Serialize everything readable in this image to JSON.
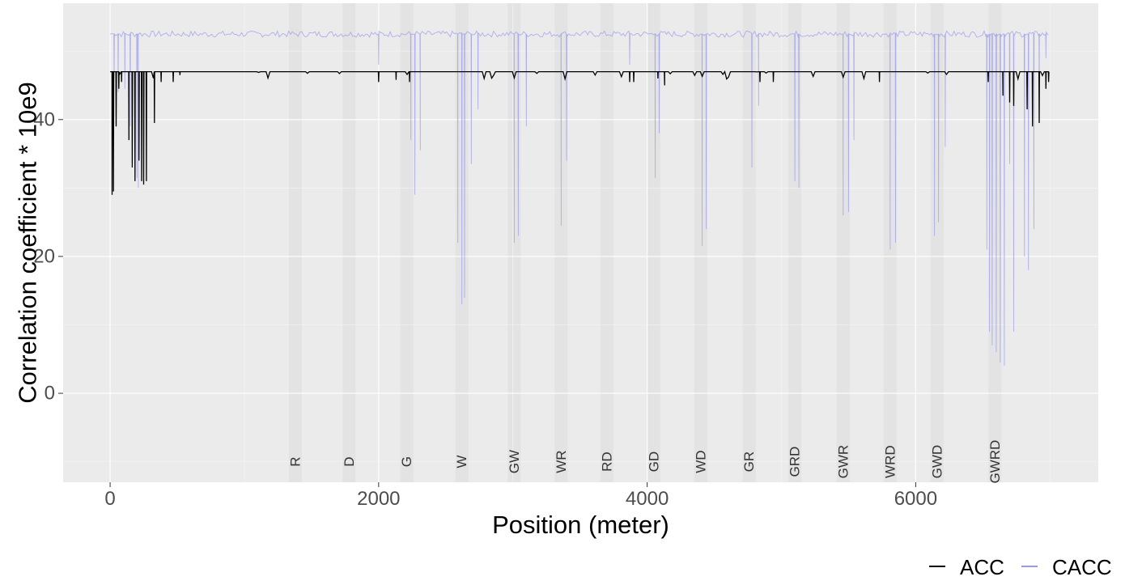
{
  "chart_data": {
    "type": "line",
    "title": "",
    "xlabel": "Position (meter)",
    "ylabel": "Correlation coefficient * 10e9",
    "xlim": [
      -350,
      7360
    ],
    "ylim": [
      -13,
      57
    ],
    "x_ticks": [
      0,
      2000,
      4000,
      6000
    ],
    "x_tick_labels": [
      "0",
      "2000",
      "4000",
      "6000"
    ],
    "y_ticks": [
      0,
      20,
      40
    ],
    "y_tick_labels": [
      "0",
      "20",
      "40"
    ],
    "grid": true,
    "background": "#EBEBEB",
    "legend": {
      "position": "bottom-right",
      "entries": [
        {
          "label": "ACC",
          "color": "#000000"
        },
        {
          "label": "CACC",
          "color": "#9999EE"
        }
      ]
    },
    "regions": [
      {
        "label": "R",
        "x": 1380
      },
      {
        "label": "D",
        "x": 1780
      },
      {
        "label": "G",
        "x": 2210
      },
      {
        "label": "W",
        "x": 2620
      },
      {
        "label": "GW",
        "x": 3010
      },
      {
        "label": "WR",
        "x": 3360
      },
      {
        "label": "RD",
        "x": 3700
      },
      {
        "label": "GD",
        "x": 4050
      },
      {
        "label": "WD",
        "x": 4400
      },
      {
        "label": "GR",
        "x": 4760
      },
      {
        "label": "GRD",
        "x": 5100
      },
      {
        "label": "GWR",
        "x": 5460
      },
      {
        "label": "WRD",
        "x": 5810
      },
      {
        "label": "GWD",
        "x": 6160
      },
      {
        "label": "GWRD",
        "x": 6590
      }
    ],
    "region_label_y": -10,
    "series": [
      {
        "name": "ACC",
        "color": "#000000",
        "baseline": 47,
        "x_start": 0,
        "x_end": 6990,
        "dips": [
          {
            "x": 15,
            "y": 29
          },
          {
            "x": 25,
            "y": 29.5
          },
          {
            "x": 45,
            "y": 39
          },
          {
            "x": 65,
            "y": 44.5
          },
          {
            "x": 85,
            "y": 45.5
          },
          {
            "x": 140,
            "y": 37
          },
          {
            "x": 165,
            "y": 33
          },
          {
            "x": 185,
            "y": 31
          },
          {
            "x": 215,
            "y": 34
          },
          {
            "x": 235,
            "y": 31
          },
          {
            "x": 250,
            "y": 30.5
          },
          {
            "x": 270,
            "y": 31
          },
          {
            "x": 330,
            "y": 39.5
          },
          {
            "x": 380,
            "y": 45.5
          },
          {
            "x": 470,
            "y": 45.5
          },
          {
            "x": 520,
            "y": 46.5
          },
          {
            "x": 2000,
            "y": 45.5
          },
          {
            "x": 2130,
            "y": 45.8
          },
          {
            "x": 2230,
            "y": 45.5
          },
          {
            "x": 3870,
            "y": 45.5
          },
          {
            "x": 3900,
            "y": 45.5
          },
          {
            "x": 4080,
            "y": 46
          },
          {
            "x": 4130,
            "y": 45
          },
          {
            "x": 4840,
            "y": 45.5
          },
          {
            "x": 4940,
            "y": 45.5
          },
          {
            "x": 5730,
            "y": 45.5
          },
          {
            "x": 6540,
            "y": 45.5
          },
          {
            "x": 6650,
            "y": 43.5
          },
          {
            "x": 6700,
            "y": 42.5
          },
          {
            "x": 6730,
            "y": 42
          },
          {
            "x": 6830,
            "y": 41.5
          },
          {
            "x": 6870,
            "y": 39
          },
          {
            "x": 6920,
            "y": 39.5
          },
          {
            "x": 6970,
            "y": 44.5
          },
          {
            "x": 6990,
            "y": 45.5
          }
        ]
      },
      {
        "name": "CACC",
        "color": "#9999EE",
        "baseline": 52.5,
        "x_start": 0,
        "x_end": 6990,
        "dips": [
          {
            "x": 30,
            "y": 46
          },
          {
            "x": 60,
            "y": 44
          },
          {
            "x": 110,
            "y": 44.5
          },
          {
            "x": 150,
            "y": 39
          },
          {
            "x": 200,
            "y": 31.5
          },
          {
            "x": 210,
            "y": 30
          },
          {
            "x": 2000,
            "y": 48
          },
          {
            "x": 2240,
            "y": 37
          },
          {
            "x": 2270,
            "y": 29
          },
          {
            "x": 2310,
            "y": 35.5
          },
          {
            "x": 2590,
            "y": 22
          },
          {
            "x": 2620,
            "y": 13
          },
          {
            "x": 2640,
            "y": 14
          },
          {
            "x": 2690,
            "y": 33.5
          },
          {
            "x": 2740,
            "y": 41.5
          },
          {
            "x": 3010,
            "y": 22
          },
          {
            "x": 3040,
            "y": 23
          },
          {
            "x": 3100,
            "y": 39
          },
          {
            "x": 3360,
            "y": 24.5
          },
          {
            "x": 3400,
            "y": 34
          },
          {
            "x": 3870,
            "y": 48
          },
          {
            "x": 4060,
            "y": 31.5
          },
          {
            "x": 4090,
            "y": 38
          },
          {
            "x": 4410,
            "y": 21.5
          },
          {
            "x": 4440,
            "y": 24
          },
          {
            "x": 4780,
            "y": 33
          },
          {
            "x": 4830,
            "y": 42
          },
          {
            "x": 5100,
            "y": 31
          },
          {
            "x": 5130,
            "y": 30
          },
          {
            "x": 5460,
            "y": 26
          },
          {
            "x": 5500,
            "y": 26.5
          },
          {
            "x": 5540,
            "y": 37
          },
          {
            "x": 5810,
            "y": 21
          },
          {
            "x": 5850,
            "y": 22
          },
          {
            "x": 6140,
            "y": 23
          },
          {
            "x": 6170,
            "y": 25
          },
          {
            "x": 6220,
            "y": 36
          },
          {
            "x": 6530,
            "y": 21
          },
          {
            "x": 6550,
            "y": 9
          },
          {
            "x": 6570,
            "y": 7
          },
          {
            "x": 6600,
            "y": 6
          },
          {
            "x": 6630,
            "y": 4.5
          },
          {
            "x": 6660,
            "y": 4
          },
          {
            "x": 6700,
            "y": 33.5
          },
          {
            "x": 6730,
            "y": 9
          },
          {
            "x": 6810,
            "y": 20
          },
          {
            "x": 6840,
            "y": 18
          },
          {
            "x": 6880,
            "y": 24
          },
          {
            "x": 6920,
            "y": 44
          },
          {
            "x": 6970,
            "y": 49
          }
        ]
      }
    ]
  }
}
